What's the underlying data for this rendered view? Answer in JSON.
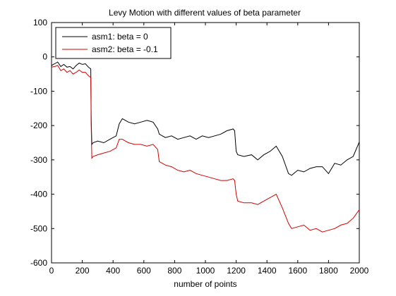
{
  "chart_data": {
    "type": "line",
    "title": "Levy Motion with different values of beta parameter",
    "xlabel": "number of points",
    "ylabel": "",
    "xlim": [
      0,
      2000
    ],
    "ylim": [
      -600,
      100
    ],
    "xticks": [
      0,
      200,
      400,
      600,
      800,
      1000,
      1200,
      1400,
      1600,
      1800,
      2000
    ],
    "yticks": [
      100,
      0,
      -100,
      -200,
      -300,
      -400,
      -500,
      -600
    ],
    "grid": false,
    "legend_position": "top-left",
    "series": [
      {
        "name": "asm1: beta = 0",
        "color": "#000000",
        "x": [
          0,
          20,
          40,
          60,
          80,
          100,
          120,
          140,
          160,
          180,
          200,
          220,
          240,
          255,
          258,
          262,
          270,
          300,
          340,
          380,
          420,
          440,
          460,
          480,
          500,
          540,
          580,
          620,
          660,
          690,
          700,
          740,
          780,
          820,
          860,
          900,
          940,
          980,
          1020,
          1060,
          1100,
          1140,
          1180,
          1190,
          1200,
          1210,
          1250,
          1300,
          1340,
          1380,
          1420,
          1460,
          1500,
          1540,
          1560,
          1600,
          1640,
          1680,
          1720,
          1760,
          1800,
          1840,
          1880,
          1920,
          1960,
          2000
        ],
        "y": [
          -25,
          -20,
          -15,
          -28,
          -22,
          -30,
          -28,
          -35,
          -25,
          -18,
          -22,
          -20,
          -30,
          -35,
          -180,
          -255,
          -250,
          -245,
          -250,
          -240,
          -230,
          -195,
          -180,
          -185,
          -190,
          -195,
          -190,
          -185,
          -190,
          -210,
          -225,
          -235,
          -230,
          -240,
          -235,
          -230,
          -240,
          -230,
          -235,
          -230,
          -225,
          -215,
          -210,
          -215,
          -275,
          -285,
          -290,
          -285,
          -300,
          -285,
          -275,
          -260,
          -290,
          -340,
          -345,
          -330,
          -335,
          -325,
          -320,
          -320,
          -340,
          -310,
          -315,
          -300,
          -290,
          -248
        ]
      },
      {
        "name": "asm2: beta = -0.1",
        "color": "#d40000",
        "x": [
          0,
          20,
          40,
          60,
          80,
          100,
          120,
          140,
          160,
          180,
          200,
          220,
          240,
          255,
          258,
          262,
          270,
          300,
          340,
          380,
          420,
          440,
          460,
          480,
          500,
          540,
          580,
          620,
          660,
          690,
          700,
          740,
          780,
          820,
          860,
          900,
          940,
          980,
          1020,
          1060,
          1100,
          1140,
          1180,
          1190,
          1200,
          1210,
          1250,
          1300,
          1340,
          1380,
          1420,
          1460,
          1500,
          1540,
          1560,
          1600,
          1640,
          1680,
          1720,
          1760,
          1800,
          1840,
          1880,
          1920,
          1960,
          2000
        ],
        "y": [
          -30,
          -28,
          -25,
          -40,
          -35,
          -45,
          -40,
          -50,
          -45,
          -38,
          -45,
          -45,
          -55,
          -60,
          -200,
          -295,
          -290,
          -285,
          -280,
          -275,
          -265,
          -240,
          -240,
          -245,
          -250,
          -255,
          -255,
          -260,
          -255,
          -270,
          -305,
          -315,
          -320,
          -330,
          -335,
          -330,
          -340,
          -345,
          -350,
          -355,
          -360,
          -360,
          -355,
          -360,
          -400,
          -420,
          -425,
          -425,
          -430,
          -420,
          -410,
          -400,
          -440,
          -485,
          -500,
          -495,
          -490,
          -505,
          -500,
          -510,
          -505,
          -500,
          -490,
          -485,
          -470,
          -445
        ]
      }
    ]
  }
}
